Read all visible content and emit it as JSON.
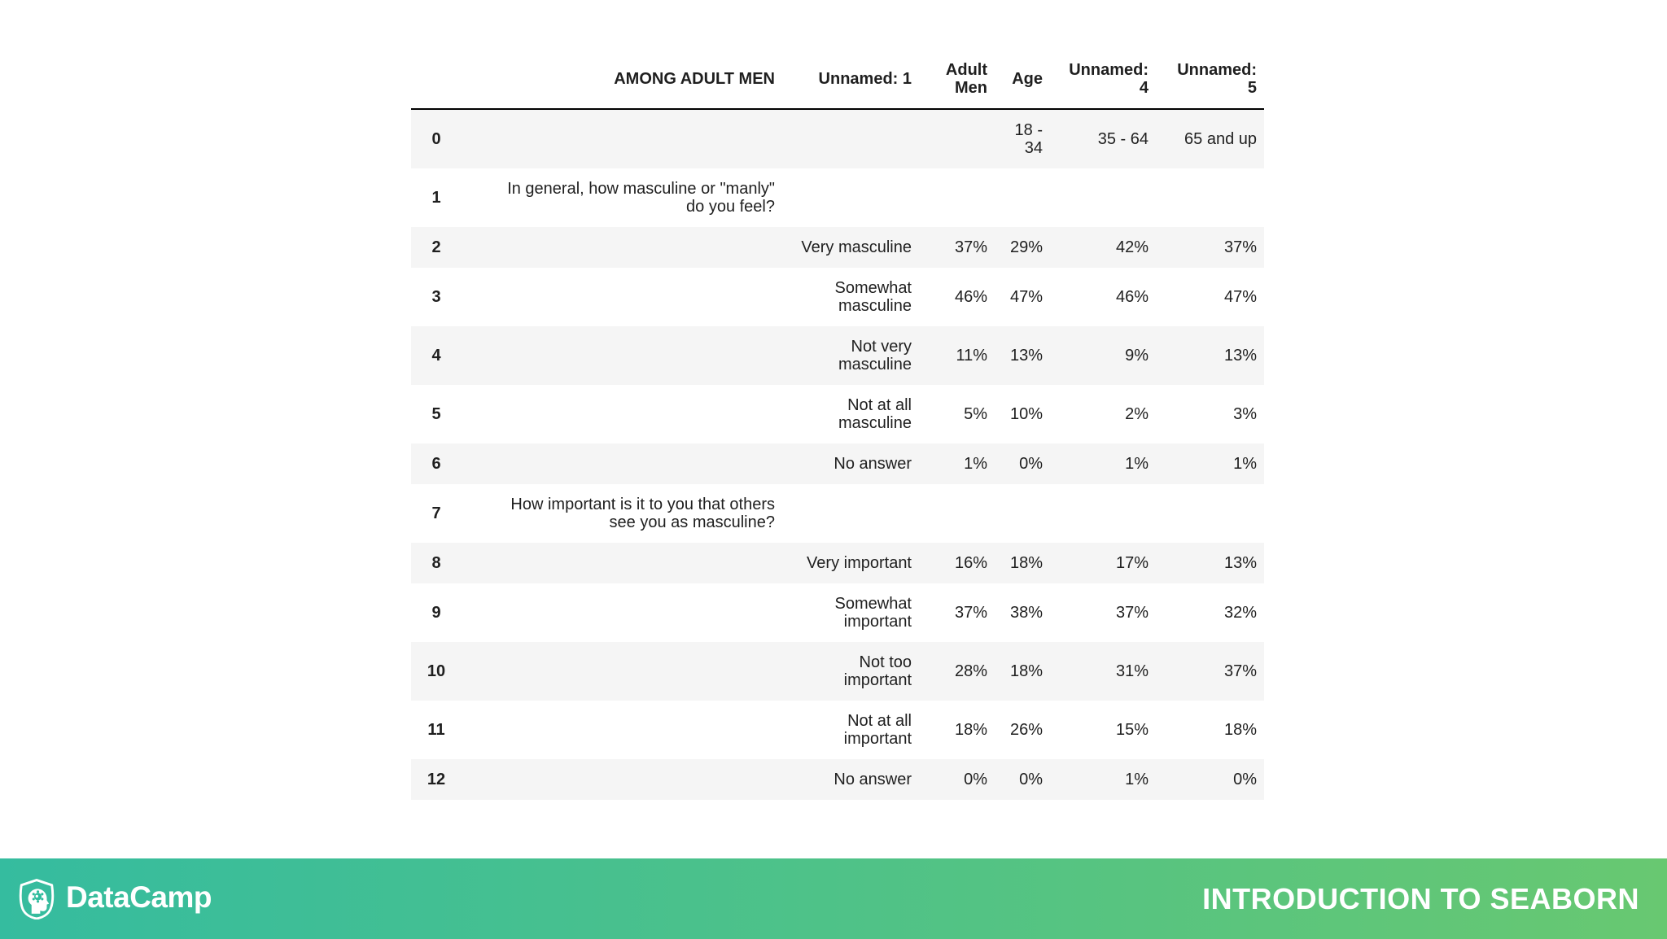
{
  "slide": {
    "table": {
      "columns": [
        "",
        "AMONG ADULT MEN",
        "Unnamed: 1",
        "Adult\nMen",
        "Age",
        "Unnamed:\n4",
        "Unnamed:\n5"
      ],
      "rows": [
        {
          "index": "0",
          "cells": [
            "",
            "",
            "",
            "18 -\n34",
            "35 - 64",
            "65 and up"
          ]
        },
        {
          "index": "1",
          "cells": [
            "In general, how masculine or \"manly\"\ndo you feel?",
            "",
            "",
            "",
            "",
            ""
          ]
        },
        {
          "index": "2",
          "cells": [
            "",
            "Very masculine",
            "37%",
            "29%",
            "42%",
            "37%"
          ]
        },
        {
          "index": "3",
          "cells": [
            "",
            "Somewhat\nmasculine",
            "46%",
            "47%",
            "46%",
            "47%"
          ]
        },
        {
          "index": "4",
          "cells": [
            "",
            "Not very\nmasculine",
            "11%",
            "13%",
            "9%",
            "13%"
          ]
        },
        {
          "index": "5",
          "cells": [
            "",
            "Not at all\nmasculine",
            "5%",
            "10%",
            "2%",
            "3%"
          ]
        },
        {
          "index": "6",
          "cells": [
            "",
            "No answer",
            "1%",
            "0%",
            "1%",
            "1%"
          ]
        },
        {
          "index": "7",
          "cells": [
            "How important is it to you that others\nsee you as masculine?",
            "",
            "",
            "",
            "",
            ""
          ]
        },
        {
          "index": "8",
          "cells": [
            "",
            "Very important",
            "16%",
            "18%",
            "17%",
            "13%"
          ]
        },
        {
          "index": "9",
          "cells": [
            "",
            "Somewhat\nimportant",
            "37%",
            "38%",
            "37%",
            "32%"
          ]
        },
        {
          "index": "10",
          "cells": [
            "",
            "Not too\nimportant",
            "28%",
            "18%",
            "31%",
            "37%"
          ]
        },
        {
          "index": "11",
          "cells": [
            "",
            "Not at all\nimportant",
            "18%",
            "26%",
            "15%",
            "18%"
          ]
        },
        {
          "index": "12",
          "cells": [
            "",
            "No answer",
            "0%",
            "0%",
            "1%",
            "0%"
          ]
        }
      ],
      "stripe_color": "#f5f5f5",
      "header_border_color": "#000000",
      "text_color": "#1f1f1f"
    },
    "footer": {
      "brand": "DataCamp",
      "course_title": "INTRODUCTION TO SEABORN",
      "gradient_left": "#35bc9f",
      "gradient_right": "#68c871",
      "text_color": "#ffffff"
    }
  }
}
